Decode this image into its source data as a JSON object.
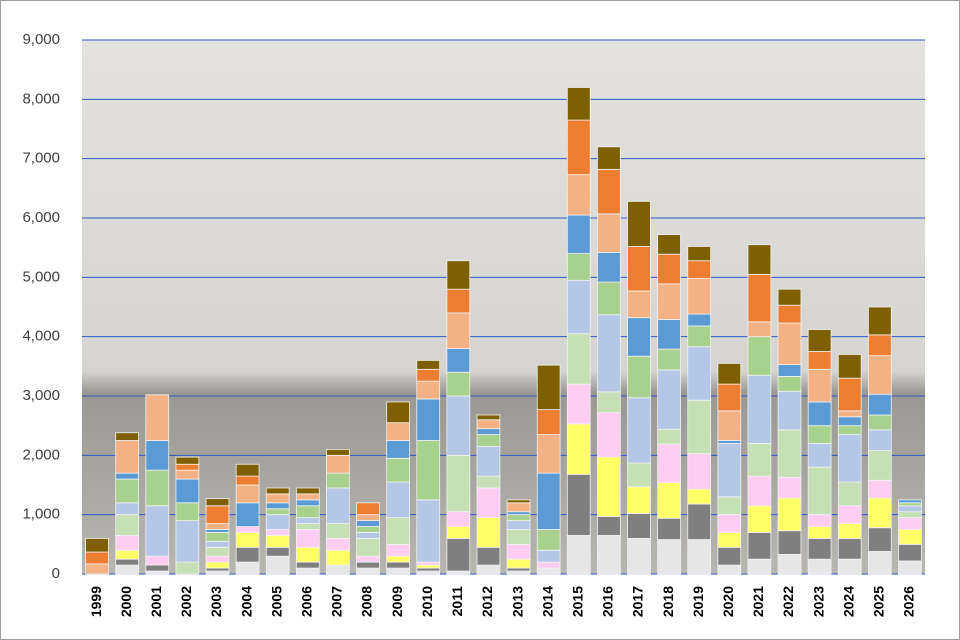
{
  "chart_data": {
    "type": "stacked_bar",
    "categories": [
      "1999",
      "2000",
      "2001",
      "2002",
      "2003",
      "2004",
      "2005",
      "2006",
      "2007",
      "2008",
      "2009",
      "2010",
      "2011",
      "2012",
      "2013",
      "2014",
      "2015",
      "2016",
      "2017",
      "2018",
      "2019",
      "2020",
      "2021",
      "2022",
      "2023",
      "2024",
      "2025",
      "2026"
    ],
    "series": [
      {
        "color": "#e6e6e6",
        "values": [
          0,
          150,
          50,
          0,
          50,
          200,
          300,
          100,
          150,
          100,
          100,
          50,
          50,
          150,
          50,
          100,
          650,
          650,
          600,
          580,
          580,
          150,
          250,
          330,
          250,
          250,
          380,
          220
        ]
      },
      {
        "color": "#7f7f7f",
        "values": [
          0,
          100,
          100,
          0,
          50,
          250,
          150,
          100,
          0,
          100,
          100,
          50,
          550,
          300,
          50,
          0,
          1030,
          320,
          420,
          360,
          600,
          300,
          450,
          400,
          350,
          350,
          400,
          280
        ]
      },
      {
        "color": "#ffff66",
        "values": [
          0,
          150,
          0,
          0,
          100,
          250,
          200,
          250,
          250,
          0,
          100,
          50,
          200,
          500,
          150,
          0,
          850,
          1000,
          450,
          600,
          250,
          250,
          450,
          550,
          200,
          250,
          500,
          250
        ]
      },
      {
        "color": "#ffccf2",
        "values": [
          0,
          250,
          150,
          0,
          100,
          100,
          100,
          300,
          200,
          100,
          200,
          50,
          250,
          500,
          250,
          100,
          670,
          750,
          0,
          650,
          600,
          300,
          500,
          350,
          200,
          300,
          300,
          200
        ]
      },
      {
        "color": "#c5e0b4",
        "values": [
          0,
          350,
          0,
          200,
          150,
          0,
          0,
          100,
          250,
          300,
          450,
          0,
          950,
          200,
          250,
          0,
          850,
          350,
          400,
          250,
          900,
          300,
          550,
          800,
          800,
          400,
          500,
          100
        ]
      },
      {
        "color": "#b4c7e7",
        "values": [
          0,
          200,
          850,
          700,
          100,
          0,
          250,
          100,
          600,
          100,
          600,
          1050,
          1000,
          500,
          150,
          200,
          900,
          1300,
          1100,
          1000,
          900,
          900,
          1150,
          650,
          400,
          800,
          350,
          100
        ]
      },
      {
        "color": "#a9d18e",
        "values": [
          0,
          400,
          600,
          300,
          150,
          0,
          100,
          200,
          250,
          100,
          400,
          1000,
          400,
          200,
          100,
          350,
          450,
          550,
          700,
          350,
          350,
          0,
          650,
          250,
          300,
          150,
          250,
          50
        ]
      },
      {
        "color": "#5b9bd5",
        "values": [
          0,
          100,
          500,
          400,
          50,
          400,
          100,
          100,
          0,
          100,
          300,
          700,
          400,
          100,
          50,
          950,
          650,
          500,
          650,
          500,
          200,
          50,
          0,
          200,
          400,
          150,
          350,
          50
        ]
      },
      {
        "color": "#f4b183",
        "values": [
          170,
          550,
          770,
          150,
          100,
          300,
          150,
          100,
          300,
          100,
          300,
          300,
          600,
          150,
          150,
          650,
          680,
          650,
          450,
          600,
          600,
          500,
          250,
          700,
          550,
          100,
          650,
          0
        ]
      },
      {
        "color": "#ed7d31",
        "values": [
          200,
          0,
          0,
          100,
          300,
          150,
          0,
          0,
          0,
          200,
          0,
          200,
          400,
          0,
          0,
          420,
          920,
          750,
          750,
          500,
          300,
          450,
          800,
          300,
          300,
          550,
          350,
          0
        ]
      },
      {
        "color": "#7f6000",
        "values": [
          230,
          130,
          0,
          120,
          120,
          200,
          100,
          100,
          100,
          0,
          350,
          150,
          480,
          80,
          50,
          750,
          550,
          380,
          760,
          330,
          240,
          350,
          500,
          270,
          370,
          400,
          470,
          0
        ]
      }
    ],
    "ylim": [
      0,
      9000
    ],
    "yticks": [
      0,
      {
        "value": 1000,
        "label": "1,000"
      },
      {
        "value": 2000,
        "label": "2,000"
      },
      {
        "value": 3000,
        "label": "3,000"
      },
      {
        "value": 4000,
        "label": "4,000"
      },
      {
        "value": 5000,
        "label": "5,000"
      },
      {
        "value": 6000,
        "label": "6,000"
      },
      {
        "value": 7000,
        "label": "7,000"
      },
      {
        "value": 8000,
        "label": "8,000"
      },
      {
        "value": 9000,
        "label": "9,000"
      }
    ],
    "grid": true,
    "grid_color": "#2f55c8"
  }
}
